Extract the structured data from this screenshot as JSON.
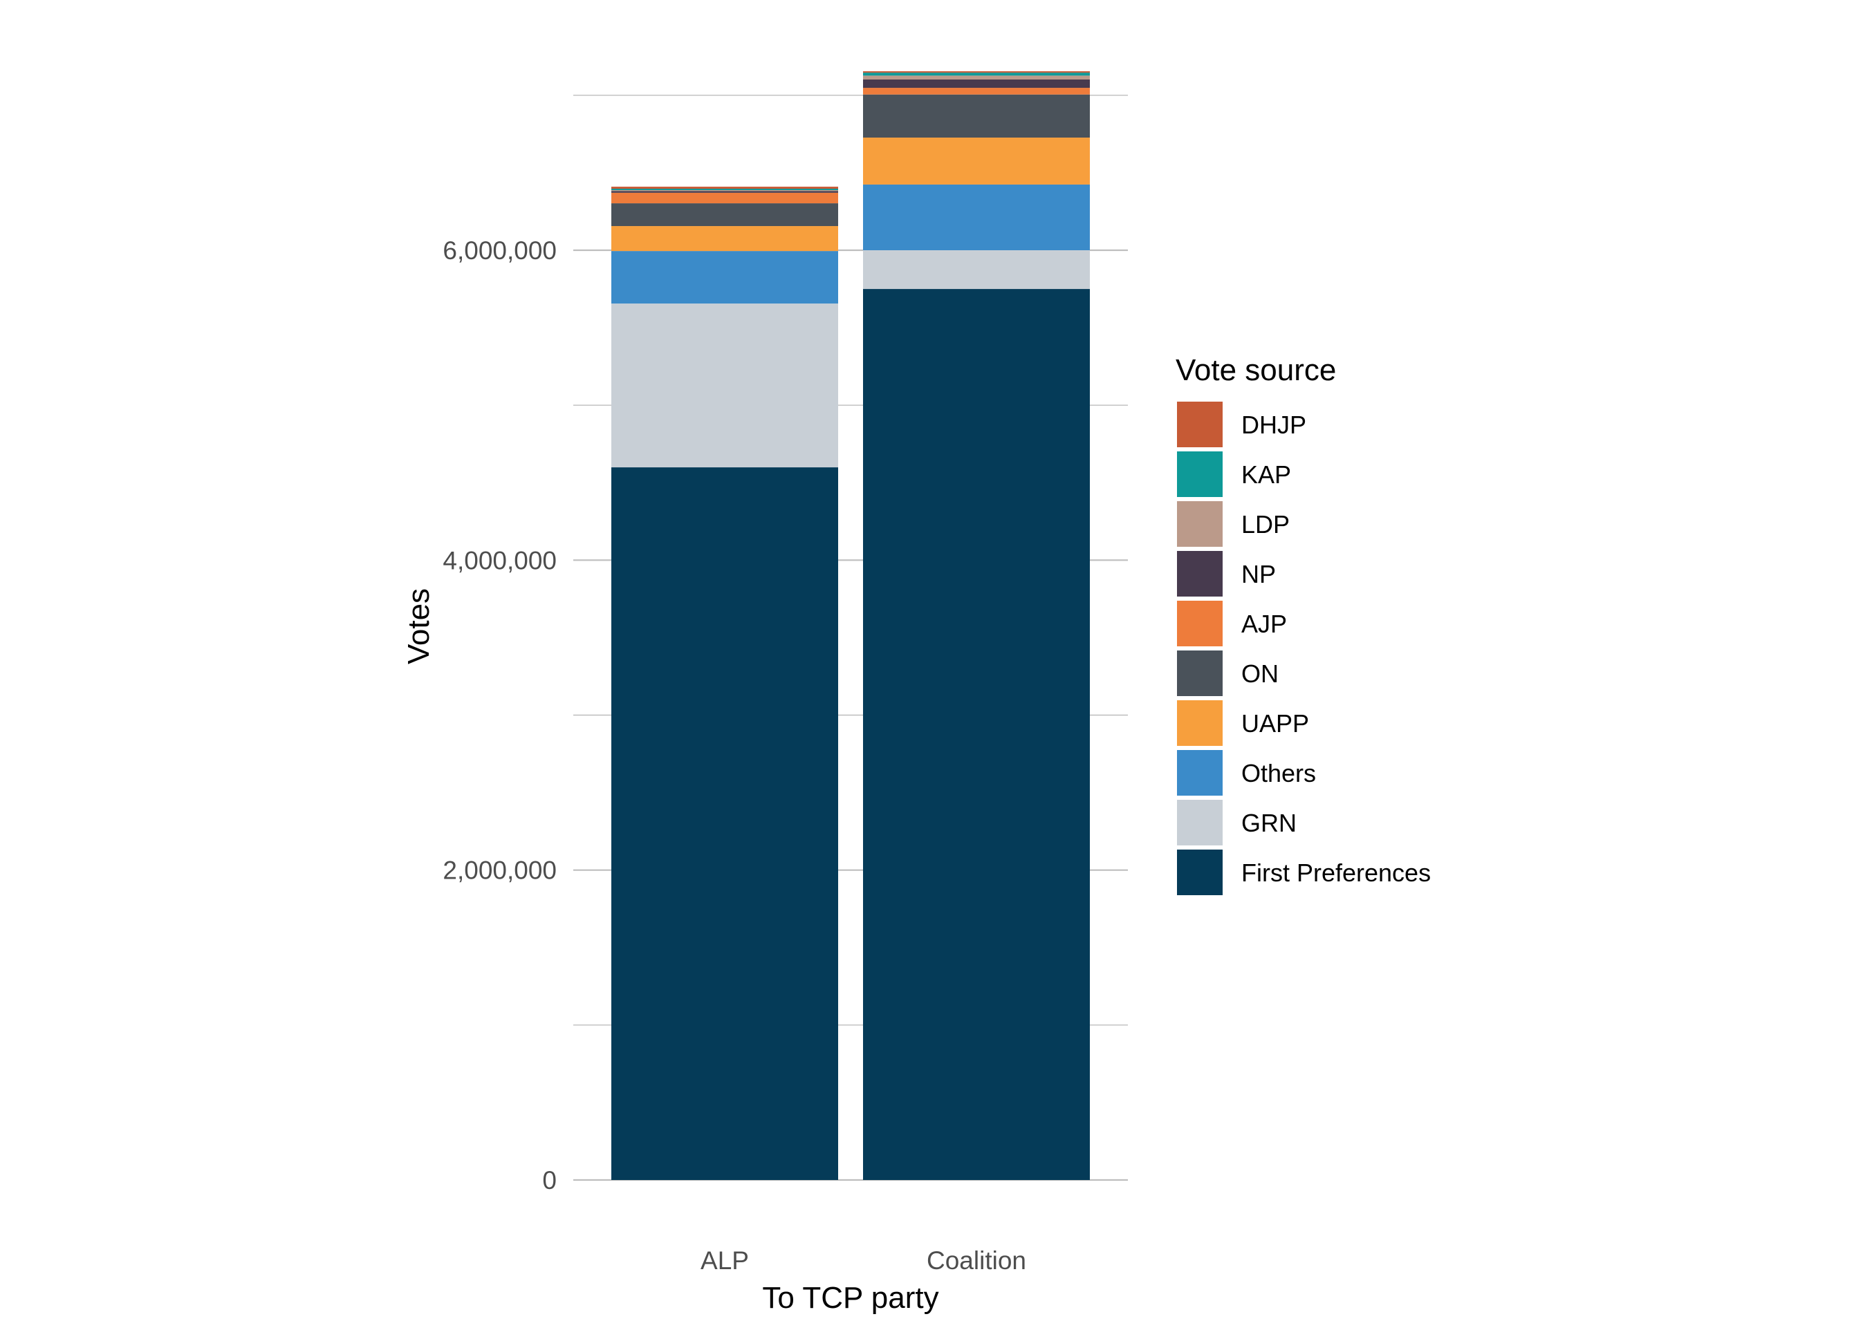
{
  "chart_data": {
    "type": "bar",
    "stacked": true,
    "title": "",
    "xlabel": "To TCP party",
    "ylabel": "Votes",
    "categories": [
      "ALP",
      "Coalition"
    ],
    "ylim": [
      0,
      7200000
    ],
    "y_ticks": [
      0,
      2000000,
      4000000,
      6000000
    ],
    "y_tick_labels": [
      "0",
      "2,000,000",
      "4,000,000",
      "6,000,000"
    ],
    "y_minor_ticks": [
      1000000,
      3000000,
      5000000,
      7000000
    ],
    "grid": true,
    "legend": {
      "title": "Vote source",
      "position": "right",
      "order": [
        "DHJP",
        "KAP",
        "LDP",
        "NP",
        "AJP",
        "ON",
        "UAPP",
        "Others",
        "GRN",
        "First Preferences"
      ]
    },
    "series": [
      {
        "name": "First Preferences",
        "color": "#053B58",
        "values": [
          4599000,
          5750000
        ]
      },
      {
        "name": "GRN",
        "color": "#C8CFD6",
        "values": [
          1057000,
          250000
        ]
      },
      {
        "name": "Others",
        "color": "#3B8BC9",
        "values": [
          339000,
          424000
        ]
      },
      {
        "name": "UAPP",
        "color": "#F79F3D",
        "values": [
          161000,
          303000
        ]
      },
      {
        "name": "ON",
        "color": "#4A525A",
        "values": [
          147000,
          278000
        ]
      },
      {
        "name": "AJP",
        "color": "#EE7C3B",
        "values": [
          68000,
          43000
        ]
      },
      {
        "name": "NP",
        "color": "#473A4E",
        "values": [
          11000,
          54000
        ]
      },
      {
        "name": "LDP",
        "color": "#BB9A8A",
        "values": [
          6000,
          25000
        ]
      },
      {
        "name": "KAP",
        "color": "#0E9A98",
        "values": [
          9000,
          19000
        ]
      },
      {
        "name": "DHJP",
        "color": "#C65A35",
        "values": [
          13000,
          9000
        ]
      }
    ]
  }
}
